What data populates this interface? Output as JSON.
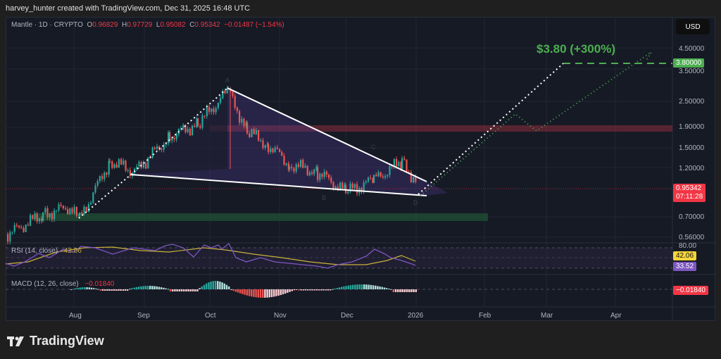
{
  "header": {
    "credit": "harvey_hunter created with TradingView.com, Dec 31, 2025 16:48 UTC"
  },
  "legend": {
    "symbol": "Mantle · 1D · CRYPTO",
    "open_label": "O",
    "open": "0.96829",
    "high_label": "H",
    "high": "0.97729",
    "low_label": "L",
    "low": "0.95082",
    "close_label": "C",
    "close": "0.95342",
    "change": "−0.01487 (−1.54%)"
  },
  "currency_button": "USD",
  "annotation": "$3.80 (+300%)",
  "price_axis": {
    "ticks": [
      "4.50000",
      "3.50000",
      "2.50000",
      "1.90000",
      "1.50000",
      "1.20000",
      "0.70000",
      "0.56000"
    ],
    "target_label": "3.80000",
    "current_price": "0.95342",
    "countdown": "07:11:28"
  },
  "rsi": {
    "label": "RSI (14, close)",
    "value_inline": "42.06",
    "axis_top": "80.00",
    "ma_value": "42.06",
    "rsi_value": "33.52"
  },
  "macd": {
    "label": "MACD (12, 26, close)",
    "value_inline": "−0.01840",
    "value": "−0.01840"
  },
  "time_axis": [
    "Aug",
    "Sep",
    "Oct",
    "Nov",
    "Dec",
    "2026",
    "Feb",
    "Mar",
    "Apr"
  ],
  "pattern_points": [
    "A",
    "B",
    "C",
    "D"
  ],
  "footer": {
    "brand": "TradingView"
  },
  "colors": {
    "up": "#26a69a",
    "down": "#ef5350",
    "target": "#4caf50",
    "rsi_line": "#7e57c2",
    "rsi_ma": "#c9b23a",
    "background": "#161a25"
  },
  "chart_data": {
    "type": "candlestick",
    "title": "Mantle · 1D · CRYPTO",
    "x_labels": [
      "Aug",
      "Sep",
      "Oct",
      "Nov",
      "Dec",
      "2026",
      "Feb",
      "Mar",
      "Apr"
    ],
    "y_ticks": [
      0.56,
      0.7,
      1.2,
      1.5,
      1.9,
      2.5,
      3.5,
      4.5
    ],
    "y_scale": "log",
    "ohlc_last": {
      "open": 0.96829,
      "high": 0.97729,
      "low": 0.95082,
      "close": 0.95342,
      "change": -0.01487,
      "change_pct": -1.54
    },
    "approx_close_path": [
      {
        "t": "Jul mid",
        "price": 0.58
      },
      {
        "t": "Aug early",
        "price": 0.72
      },
      {
        "t": "Aug mid",
        "price": 0.78
      },
      {
        "t": "Aug late",
        "price": 0.68
      },
      {
        "t": "Aug end",
        "price": 1.3
      },
      {
        "t": "Sep early",
        "price": 1.15
      },
      {
        "t": "Sep mid",
        "price": 1.7
      },
      {
        "t": "Sep late",
        "price": 1.95
      },
      {
        "t": "Oct 9",
        "price": 2.8
      },
      {
        "t": "Oct mid",
        "price": 1.8
      },
      {
        "t": "Oct late",
        "price": 1.55
      },
      {
        "t": "Nov early",
        "price": 1.25
      },
      {
        "t": "Nov mid",
        "price": 1.15
      },
      {
        "t": "Nov late",
        "price": 0.92
      },
      {
        "t": "Dec early",
        "price": 1.05
      },
      {
        "t": "Dec mid",
        "price": 1.3
      },
      {
        "t": "Dec late",
        "price": 1.02
      },
      {
        "t": "Dec 31",
        "price": 0.95342
      }
    ],
    "zones": [
      {
        "name": "resistance",
        "low": 1.85,
        "high": 1.95,
        "color": "#ef5350"
      },
      {
        "name": "support",
        "low": 0.68,
        "high": 0.72,
        "color": "#26a69a"
      }
    ],
    "pattern": "falling wedge A-B-C-D",
    "target": {
      "price": 3.8,
      "label": "$3.80 (+300%)"
    },
    "rsi": {
      "period": 14,
      "value": 33.52,
      "ma": 42.06,
      "upper": 80
    },
    "macd": {
      "fast": 12,
      "slow": 26,
      "value": -0.0184
    }
  }
}
